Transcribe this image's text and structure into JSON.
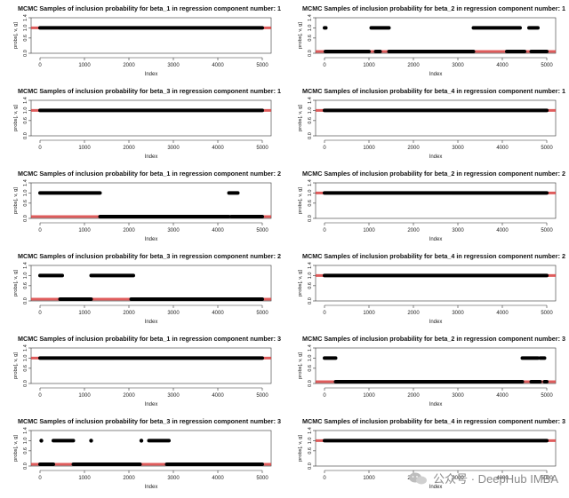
{
  "chart_data": [
    {
      "type": "line",
      "title": "MCMC Samples of inclusion probability for beta_1 in regression component number: 1",
      "xlabel": "Index",
      "ylabel": "probs[, v, g]",
      "xlim": [
        -200,
        5200
      ],
      "ylim": [
        0,
        1.4
      ],
      "yticks": [
        "0.0",
        "0.6",
        "1.0",
        "1.4"
      ],
      "xticks": [
        0,
        1000,
        2000,
        3000,
        4000,
        5000
      ],
      "segments": [
        {
          "x0": 0,
          "x1": 5000,
          "y": 1.0
        }
      ],
      "dots": [],
      "ref_line": 1.0
    },
    {
      "type": "line",
      "title": "MCMC Samples of inclusion probability for beta_2 in regression component number: 1",
      "xlabel": "Index",
      "ylabel": "probs[, v, g]",
      "xlim": [
        -200,
        5200
      ],
      "ylim": [
        0,
        1.4
      ],
      "yticks": [
        "0.0",
        "0.6",
        "1.0",
        "1.4"
      ],
      "xticks": [
        0,
        1000,
        2000,
        3000,
        4000,
        5000
      ],
      "segments": [
        {
          "x0": 0,
          "x1": 30,
          "y": 1.0
        },
        {
          "x0": 20,
          "x1": 1000,
          "y": 0.07
        },
        {
          "x0": 1050,
          "x1": 1450,
          "y": 1.0
        },
        {
          "x0": 1150,
          "x1": 1250,
          "y": 0.07
        },
        {
          "x0": 1450,
          "x1": 3350,
          "y": 0.07
        },
        {
          "x0": 3350,
          "x1": 4400,
          "y": 1.0
        },
        {
          "x0": 4100,
          "x1": 4500,
          "y": 0.07
        },
        {
          "x0": 4600,
          "x1": 4800,
          "y": 1.0
        },
        {
          "x0": 4650,
          "x1": 5000,
          "y": 0.07
        }
      ],
      "dots": [],
      "ref_line": 0.07
    },
    {
      "type": "line",
      "title": "MCMC Samples of inclusion probability for beta_3 in regression component number: 1",
      "xlabel": "Index",
      "ylabel": "probs[, v, g]",
      "xlim": [
        -200,
        5200
      ],
      "ylim": [
        0,
        1.4
      ],
      "yticks": [
        "0.0",
        "0.6",
        "1.0",
        "1.4"
      ],
      "xticks": [
        0,
        1000,
        2000,
        3000,
        4000,
        5000
      ],
      "segments": [
        {
          "x0": 0,
          "x1": 5000,
          "y": 1.0
        }
      ],
      "dots": [],
      "ref_line": 1.0
    },
    {
      "type": "line",
      "title": "MCMC Samples of inclusion probability for beta_4 in regression component number: 1",
      "xlabel": "Index",
      "ylabel": "probs[, v, g]",
      "xlim": [
        -200,
        5200
      ],
      "ylim": [
        0,
        1.4
      ],
      "yticks": [
        "0.0",
        "0.6",
        "1.0",
        "1.4"
      ],
      "xticks": [
        0,
        1000,
        2000,
        3000,
        4000,
        5000
      ],
      "segments": [
        {
          "x0": 0,
          "x1": 5000,
          "y": 1.0
        }
      ],
      "dots": [],
      "ref_line": 1.0
    },
    {
      "type": "line",
      "title": "MCMC Samples of inclusion probability for beta_1 in regression component number: 2",
      "xlabel": "Index",
      "ylabel": "probs[, v, g]",
      "xlim": [
        -200,
        5200
      ],
      "ylim": [
        0,
        1.4
      ],
      "yticks": [
        "0.0",
        "0.6",
        "1.0",
        "1.4"
      ],
      "xticks": [
        0,
        1000,
        2000,
        3000,
        4000,
        5000
      ],
      "segments": [
        {
          "x0": 0,
          "x1": 1350,
          "y": 1.0
        },
        {
          "x0": 1350,
          "x1": 4250,
          "y": 0.07
        },
        {
          "x0": 4250,
          "x1": 4450,
          "y": 1.0
        },
        {
          "x0": 4300,
          "x1": 5000,
          "y": 0.07
        }
      ],
      "dots": [],
      "ref_line": 0.07
    },
    {
      "type": "line",
      "title": "MCMC Samples of inclusion probability for beta_2 in regression component number: 2",
      "xlabel": "Index",
      "ylabel": "probs[, v, g]",
      "xlim": [
        -200,
        5200
      ],
      "ylim": [
        0,
        1.4
      ],
      "yticks": [
        "0.0",
        "0.6",
        "1.0",
        "1.4"
      ],
      "xticks": [
        0,
        1000,
        2000,
        3000,
        4000,
        5000
      ],
      "segments": [
        {
          "x0": 0,
          "x1": 5000,
          "y": 1.0
        }
      ],
      "dots": [],
      "ref_line": 1.0
    },
    {
      "type": "line",
      "title": "MCMC Samples of inclusion probability for beta_3 in regression component number: 2",
      "xlabel": "Index",
      "ylabel": "probs[, v, g]",
      "xlim": [
        -200,
        5200
      ],
      "ylim": [
        0,
        1.4
      ],
      "yticks": [
        "0.0",
        "0.6",
        "1.0",
        "1.4"
      ],
      "xticks": [
        0,
        1000,
        2000,
        3000,
        4000,
        5000
      ],
      "segments": [
        {
          "x0": 0,
          "x1": 500,
          "y": 1.0
        },
        {
          "x0": 450,
          "x1": 1150,
          "y": 0.07
        },
        {
          "x0": 1150,
          "x1": 2100,
          "y": 1.0
        },
        {
          "x0": 2050,
          "x1": 5000,
          "y": 0.07
        }
      ],
      "dots": [],
      "ref_line": 0.07
    },
    {
      "type": "line",
      "title": "MCMC Samples of inclusion probability for beta_4 in regression component number: 2",
      "xlabel": "Index",
      "ylabel": "probs[, v, g]",
      "xlim": [
        -200,
        5200
      ],
      "ylim": [
        0,
        1.4
      ],
      "yticks": [
        "0.0",
        "0.6",
        "1.0",
        "1.4"
      ],
      "xticks": [
        0,
        1000,
        2000,
        3000,
        4000,
        5000
      ],
      "segments": [
        {
          "x0": 0,
          "x1": 5000,
          "y": 1.0
        }
      ],
      "dots": [],
      "ref_line": 1.0
    },
    {
      "type": "line",
      "title": "MCMC Samples of inclusion probability for beta_1 in regression component number: 3",
      "xlabel": "Index",
      "ylabel": "probs[, v, g]",
      "xlim": [
        -200,
        5200
      ],
      "ylim": [
        0,
        1.4
      ],
      "yticks": [
        "0.0",
        "0.6",
        "1.0",
        "1.4"
      ],
      "xticks": [
        0,
        1000,
        2000,
        3000,
        4000,
        5000
      ],
      "segments": [
        {
          "x0": 0,
          "x1": 5000,
          "y": 1.0
        }
      ],
      "dots": [],
      "ref_line": 1.0
    },
    {
      "type": "line",
      "title": "MCMC Samples of inclusion probability for beta_2 in regression component number: 3",
      "xlabel": "Index",
      "ylabel": "probs[, v, g]",
      "xlim": [
        -200,
        5200
      ],
      "ylim": [
        0,
        1.4
      ],
      "yticks": [
        "0.0",
        "0.6",
        "1.0",
        "1.4"
      ],
      "xticks": [
        0,
        1000,
        2000,
        3000,
        4000,
        5000
      ],
      "segments": [
        {
          "x0": 0,
          "x1": 250,
          "y": 1.0
        },
        {
          "x0": 250,
          "x1": 4450,
          "y": 0.07
        },
        {
          "x0": 4450,
          "x1": 4800,
          "y": 1.0
        },
        {
          "x0": 4650,
          "x1": 4850,
          "y": 0.07
        },
        {
          "x0": 4850,
          "x1": 4950,
          "y": 1.0
        },
        {
          "x0": 4950,
          "x1": 5000,
          "y": 0.07
        }
      ],
      "dots": [],
      "ref_line": 0.07
    },
    {
      "type": "line",
      "title": "MCMC Samples of inclusion probability for beta_3 in regression component number: 3",
      "xlabel": "Index",
      "ylabel": "probs[, v, g]",
      "xlim": [
        -200,
        5200
      ],
      "ylim": [
        0,
        1.4
      ],
      "yticks": [
        "0.0",
        "0.6",
        "1.0",
        "1.4"
      ],
      "xticks": [
        0,
        1000,
        2000,
        3000,
        4000,
        5000
      ],
      "segments": [
        {
          "x0": 0,
          "x1": 300,
          "y": 0.07
        },
        {
          "x0": 300,
          "x1": 750,
          "y": 1.0
        },
        {
          "x0": 750,
          "x1": 2250,
          "y": 0.07
        },
        {
          "x0": 2450,
          "x1": 2900,
          "y": 1.0
        },
        {
          "x0": 2850,
          "x1": 5000,
          "y": 0.07
        }
      ],
      "dots": [
        {
          "x": 30,
          "y": 1.0
        },
        {
          "x": 1150,
          "y": 1.0
        },
        {
          "x": 2280,
          "y": 1.0
        }
      ],
      "ref_line": 0.07
    },
    {
      "type": "line",
      "title": "MCMC Samples of inclusion probability for beta_4 in regression component number: 3",
      "xlabel": "Index",
      "ylabel": "probs[, v, g]",
      "xlim": [
        -200,
        5200
      ],
      "ylim": [
        0,
        1.4
      ],
      "yticks": [
        "0.0",
        "0.6",
        "1.0",
        "1.4"
      ],
      "xticks": [
        0,
        1000,
        2000,
        3000,
        4000,
        5000
      ],
      "segments": [
        {
          "x0": 0,
          "x1": 5000,
          "y": 1.0
        }
      ],
      "dots": [],
      "ref_line": 1.0
    }
  ],
  "colors": {
    "trace": "#000000",
    "ref_line": "#d94040",
    "axis": "#333333"
  },
  "watermark": {
    "text": "公众号 · DeepHub IMBA",
    "icon": "wechat-icon"
  }
}
